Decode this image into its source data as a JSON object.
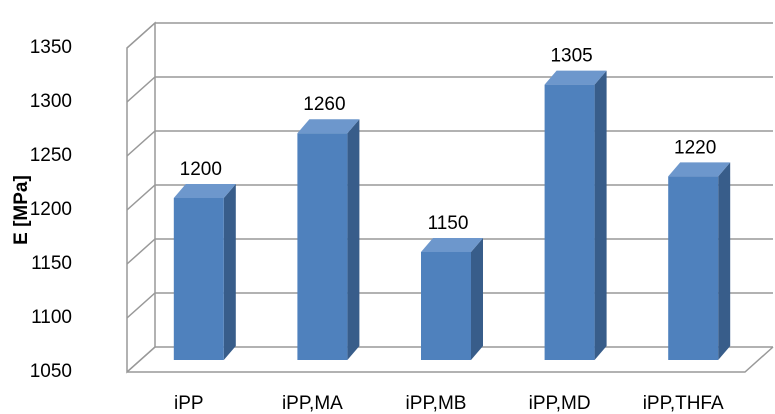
{
  "chart_data": {
    "type": "bar",
    "y_label": "E [MPa]",
    "categories": [
      "iPP",
      "iPP,MA",
      "iPP,MB",
      "iPP,MD",
      "iPP,THFA"
    ],
    "values": [
      1200,
      1260,
      1150,
      1305,
      1220
    ],
    "color": "#4f81bd",
    "ylim": [
      1050,
      1350
    ],
    "yticks": [
      1050,
      1100,
      1150,
      1200,
      1250,
      1300,
      1350
    ],
    "grid": true,
    "data_labels": true
  }
}
